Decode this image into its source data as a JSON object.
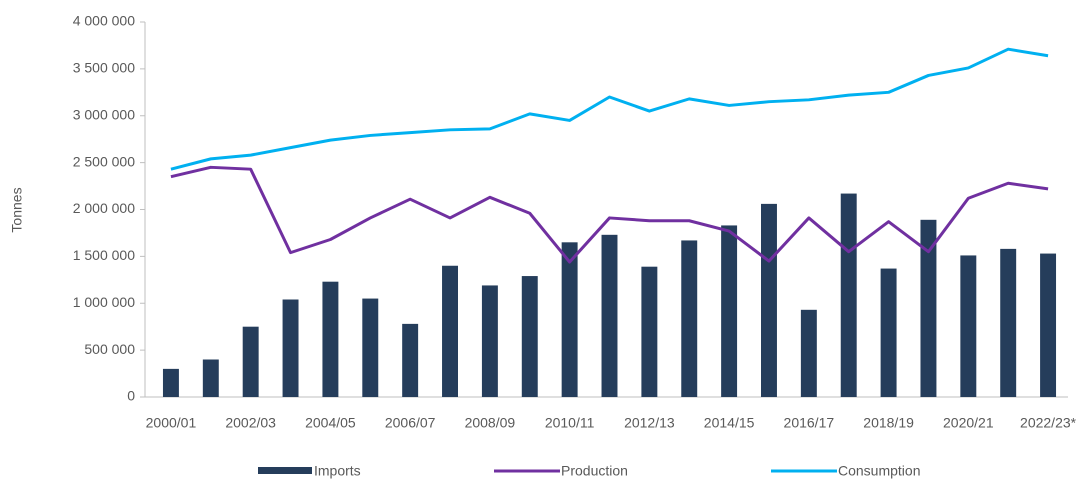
{
  "chart_data": {
    "type": "bar",
    "axis_label": "Tonnes",
    "categories": [
      "2000/01",
      null,
      "2002/03",
      null,
      "2004/05",
      null,
      "2006/07",
      null,
      "2008/09",
      null,
      "2010/11",
      null,
      "2012/13",
      null,
      "2014/15",
      null,
      "2016/17",
      null,
      "2018/19",
      null,
      "2020/21",
      null,
      "2022/23*"
    ],
    "series": [
      {
        "name": "Imports",
        "type": "bar",
        "color": "#253d5b",
        "values": [
          300000,
          400000,
          750000,
          1040000,
          1230000,
          1050000,
          780000,
          1400000,
          1190000,
          1290000,
          1650000,
          1730000,
          1390000,
          1670000,
          1830000,
          2060000,
          930000,
          2170000,
          1370000,
          1890000,
          1510000,
          1580000,
          1530000
        ]
      },
      {
        "name": "Production",
        "type": "line",
        "color": "#7030a0",
        "values": [
          2350000,
          2450000,
          2430000,
          1540000,
          1680000,
          1910000,
          2110000,
          1910000,
          2130000,
          1960000,
          1440000,
          1910000,
          1880000,
          1880000,
          1770000,
          1450000,
          1910000,
          1550000,
          1870000,
          1550000,
          2120000,
          2280000,
          2220000
        ]
      },
      {
        "name": "Consumption",
        "type": "line",
        "color": "#00b0f0",
        "values": [
          2430000,
          2540000,
          2580000,
          2660000,
          2740000,
          2790000,
          2820000,
          2850000,
          2860000,
          3020000,
          2950000,
          3200000,
          3050000,
          3180000,
          3110000,
          3150000,
          3170000,
          3220000,
          3250000,
          3430000,
          3510000,
          3710000,
          3640000
        ]
      }
    ],
    "ylim": [
      0,
      4000000
    ],
    "yticks": [
      0,
      {
        "value": 500000,
        "label": "500 000"
      },
      {
        "value": 1000000,
        "label": "1 000 000"
      },
      {
        "value": 1500000,
        "label": "1 500 000"
      },
      {
        "value": 2000000,
        "label": "2 000 000"
      },
      {
        "value": 2500000,
        "label": "2 500 000"
      },
      {
        "value": 3000000,
        "label": "3 000 000"
      },
      {
        "value": 3500000,
        "label": "3 500 000"
      },
      {
        "value": 4000000,
        "label": "4 000 000"
      }
    ],
    "grid": false,
    "legend": "bottom"
  }
}
